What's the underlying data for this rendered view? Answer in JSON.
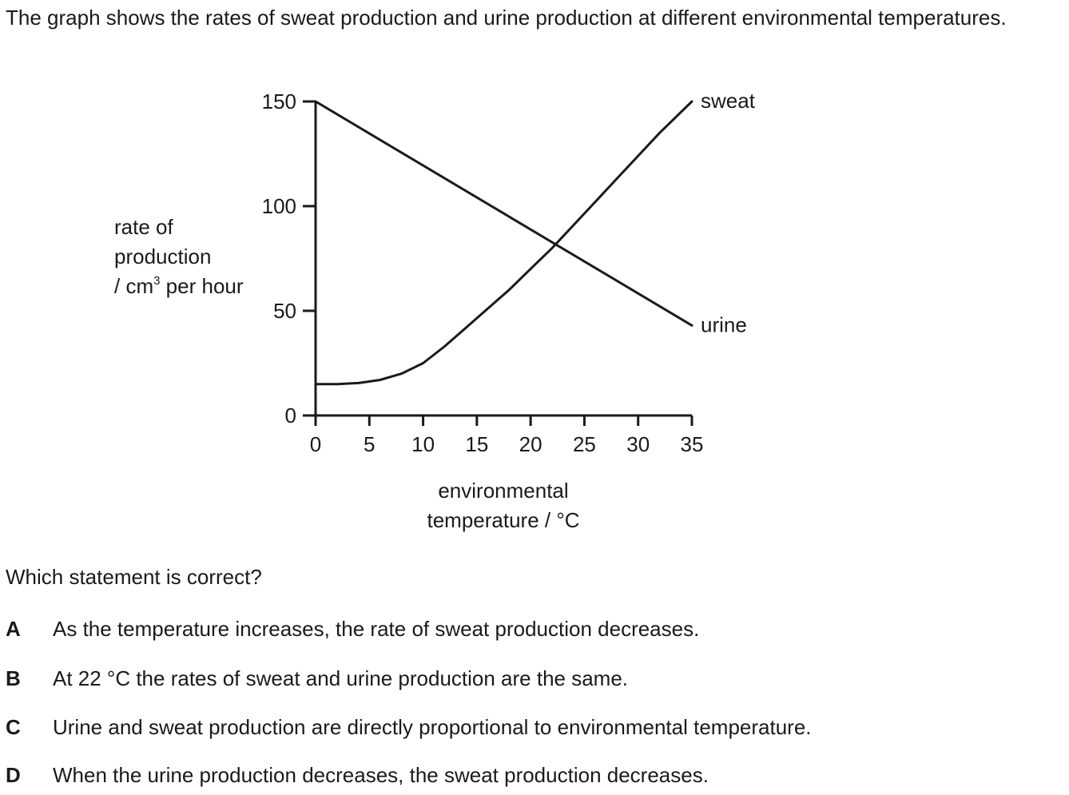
{
  "intro_text": "The graph shows the rates of sweat production and urine production at different environmental temperatures.",
  "chart_data": {
    "type": "line",
    "xlabel_line1": "environmental",
    "xlabel_line2": "temperature / °C",
    "ylabel_line1": "rate of",
    "ylabel_line2": "production",
    "ylabel_line3_pre": "/ cm",
    "ylabel_line3_sup": "3",
    "ylabel_line3_post": " per hour",
    "xlim": [
      0,
      35
    ],
    "ylim": [
      0,
      150
    ],
    "x_ticks": [
      0,
      5,
      10,
      15,
      20,
      25,
      30,
      35
    ],
    "x_tick_labels": [
      "0",
      "5",
      "10",
      "15",
      "20",
      "25",
      "30",
      "35"
    ],
    "y_ticks": [
      0,
      50,
      100,
      150
    ],
    "y_tick_labels": [
      "0",
      "50",
      "100",
      "150"
    ],
    "grid": false,
    "series": [
      {
        "name": "sweat",
        "x": [
          0,
          2,
          4,
          6,
          8,
          10,
          12,
          14,
          16,
          18,
          20,
          22,
          24,
          26,
          28,
          30,
          32,
          35
        ],
        "y": [
          15,
          15,
          15.5,
          17,
          20,
          25,
          33,
          42,
          51,
          60,
          70,
          80,
          91,
          102,
          113,
          124,
          135,
          150
        ]
      },
      {
        "name": "urine",
        "x": [
          0,
          35
        ],
        "y": [
          150,
          43
        ]
      }
    ]
  },
  "question": "Which statement is correct?",
  "options": [
    {
      "letter": "A",
      "text": "As the temperature increases, the rate of sweat production decreases."
    },
    {
      "letter": "B",
      "text": "At 22 °C the rates of sweat and urine production are the same."
    },
    {
      "letter": "C",
      "text": "Urine and sweat production are directly proportional to environmental temperature."
    },
    {
      "letter": "D",
      "text": "When the urine production decreases, the sweat production decreases."
    }
  ],
  "colors": {
    "ink": "#1a1a1a",
    "background": "#ffffff"
  }
}
